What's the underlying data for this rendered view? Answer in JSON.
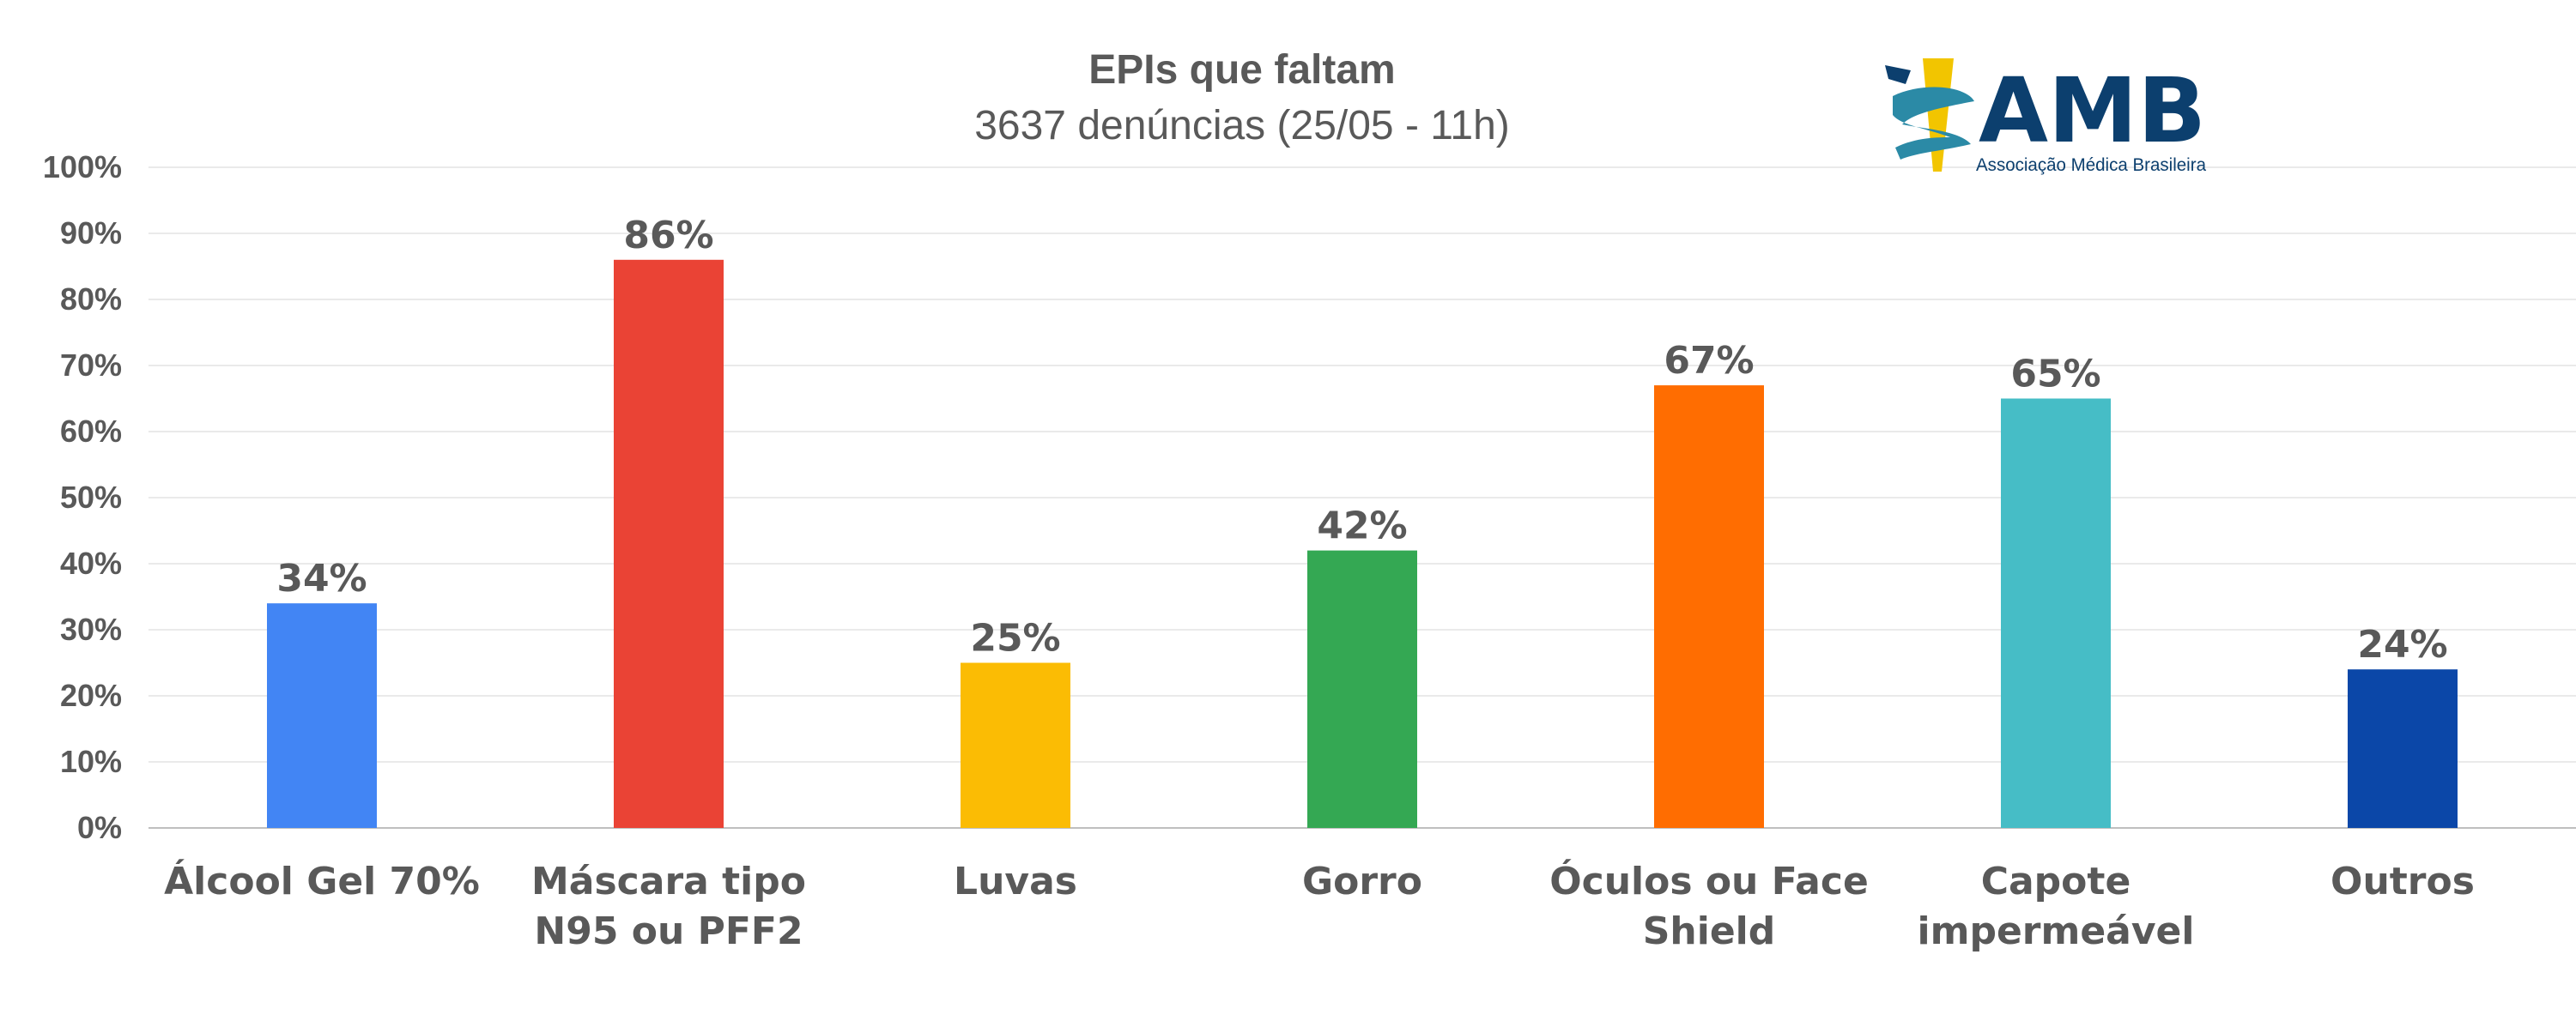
{
  "chart_data": {
    "type": "bar",
    "title": "EPIs que faltam",
    "subtitle": "3637 denúncias (25/05 - 11h)",
    "categories": [
      [
        "Álcool Gel 70%"
      ],
      [
        "Máscara tipo",
        "N95 ou PFF2"
      ],
      [
        "Luvas"
      ],
      [
        "Gorro"
      ],
      [
        "Óculos ou Face",
        "Shield"
      ],
      [
        "Capote",
        "impermeável"
      ],
      [
        "Outros"
      ]
    ],
    "values": [
      34,
      86,
      25,
      42,
      67,
      65,
      24
    ],
    "value_labels": [
      "34%",
      "86%",
      "25%",
      "42%",
      "67%",
      "65%",
      "24%"
    ],
    "colors": [
      "#4285f4",
      "#ea4335",
      "#fbbc04",
      "#34a853",
      "#ff6d01",
      "#46bdc6",
      "#0b47a8"
    ],
    "ylim": [
      0,
      100
    ],
    "yticks": [
      "0%",
      "10%",
      "20%",
      "30%",
      "40%",
      "50%",
      "60%",
      "70%",
      "80%",
      "90%",
      "100%"
    ],
    "grid": true,
    "legend": "none"
  },
  "logo": {
    "name": "AMB",
    "tagline": "Associação Médica Brasileira",
    "color": "#0c3f6e",
    "accent_colors": [
      "#f2c500",
      "#2b8aa6"
    ]
  }
}
